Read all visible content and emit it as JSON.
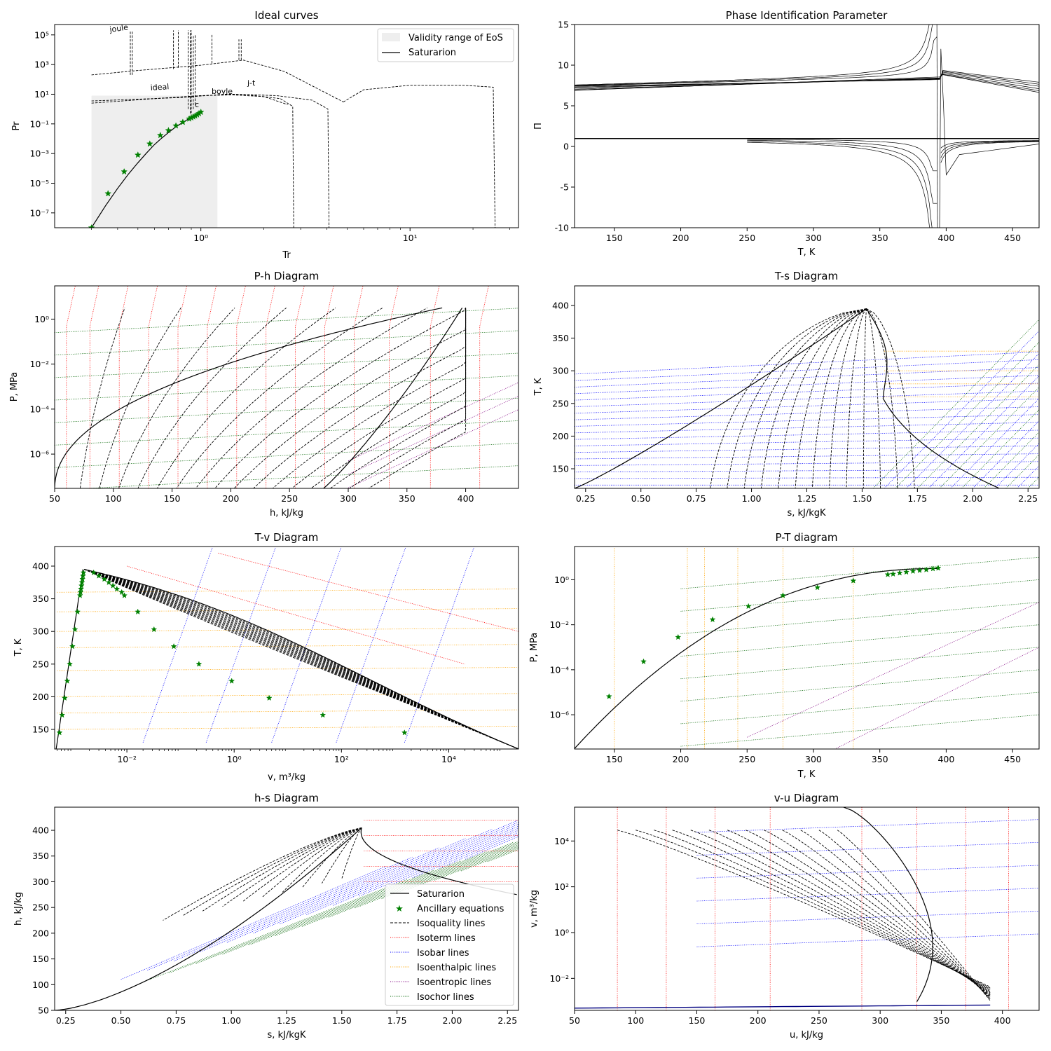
{
  "colors": {
    "saturation": "#000000",
    "ancillary": "#008000",
    "isoquality": "#000000",
    "isotherm": "#ff0000",
    "isobar": "#0000ff",
    "isoenthalpic": "#ffa500",
    "isoentropic": "#800080",
    "isochor": "#006400",
    "validity": "#eeeeee"
  },
  "chart_data": [
    {
      "id": "ideal",
      "type": "line",
      "title": "Ideal curves",
      "xlabel": "Tr",
      "ylabel": "Pr",
      "xscale": "log",
      "yscale": "log",
      "xlim": [
        0.2,
        33
      ],
      "ylim": [
        1e-08,
        500000.0
      ],
      "xticks": [
        {
          "v": 1,
          "label": "10⁰"
        },
        {
          "v": 10,
          "label": "10¹"
        }
      ],
      "yticks": [
        {
          "v": 1e-07,
          "label": "10⁻⁷"
        },
        {
          "v": 1e-05,
          "label": "10⁻⁵"
        },
        {
          "v": 0.001,
          "label": "10⁻³"
        },
        {
          "v": 0.1,
          "label": "10⁻¹"
        },
        {
          "v": 10,
          "label": "10¹"
        },
        {
          "v": 1000,
          "label": "10³"
        },
        {
          "v": 100000,
          "label": "10⁵"
        }
      ],
      "legend": {
        "position": "top-right",
        "entries": [
          "Validity range of EoS",
          "Saturarion"
        ]
      },
      "annotations": [
        "joule",
        "ideal",
        "boyle",
        "j-t",
        "c"
      ],
      "saturation": {
        "x": [
          0.3,
          0.35,
          0.4,
          0.45,
          0.5,
          0.55,
          0.6,
          0.65,
          0.7,
          0.75,
          0.8,
          0.85,
          0.9,
          0.95,
          1.0
        ],
        "y": [
          1e-08,
          3e-07,
          4.5e-06,
          4e-05,
          0.00024,
          0.0011,
          0.004,
          0.011,
          0.026,
          0.055,
          0.1,
          0.17,
          0.28,
          0.44,
          0.65
        ]
      },
      "ancillary": {
        "x": [
          0.3,
          0.36,
          0.43,
          0.5,
          0.57,
          0.64,
          0.7,
          0.76,
          0.82,
          0.88,
          0.9,
          0.92,
          0.94,
          0.96,
          0.98,
          1.0
        ],
        "y": [
          1e-08,
          2e-06,
          6e-05,
          0.0008,
          0.0045,
          0.017,
          0.036,
          0.075,
          0.13,
          0.22,
          0.26,
          0.3,
          0.35,
          0.41,
          0.5,
          0.62
        ]
      },
      "validity": {
        "tr": [
          0.3,
          1.2
        ],
        "pr": [
          1e-08,
          8
        ]
      }
    },
    {
      "id": "pip",
      "type": "line",
      "title": "Phase Identification Parameter",
      "xlabel": "T, K",
      "ylabel": "Π",
      "xscale": "linear",
      "yscale": "linear",
      "xlim": [
        120,
        470
      ],
      "ylim": [
        -10,
        15
      ],
      "xticks": [
        150,
        200,
        250,
        300,
        350,
        400,
        450
      ],
      "yticks": [
        -10,
        -5,
        0,
        5,
        10,
        15
      ]
    },
    {
      "id": "ph",
      "type": "line",
      "title": "P-h Diagram",
      "xlabel": "h, kJ/kg",
      "ylabel": "P, MPa",
      "xscale": "linear",
      "yscale": "log",
      "xlim": [
        50,
        445
      ],
      "ylim": [
        3e-08,
        30
      ],
      "xticks": [
        50,
        100,
        150,
        200,
        250,
        300,
        350,
        400
      ],
      "yticks": [
        {
          "v": 1e-06,
          "label": "10⁻⁶"
        },
        {
          "v": 0.0001,
          "label": "10⁻⁴"
        },
        {
          "v": 0.01,
          "label": "10⁻²"
        },
        {
          "v": 1,
          "label": "10⁰"
        }
      ]
    },
    {
      "id": "ts",
      "type": "line",
      "title": "T-s Diagram",
      "xlabel": "s, kJ/kgK",
      "ylabel": "T, K",
      "xscale": "linear",
      "yscale": "linear",
      "xlim": [
        0.2,
        2.3
      ],
      "ylim": [
        120,
        430
      ],
      "xticks": [
        0.25,
        0.5,
        0.75,
        1.0,
        1.25,
        1.5,
        1.75,
        2.0,
        2.25
      ],
      "xtick_labels": [
        "0.25",
        "0.50",
        "0.75",
        "1.00",
        "1.25",
        "1.50",
        "1.75",
        "2.00",
        "2.25"
      ],
      "yticks": [
        150,
        200,
        250,
        300,
        350,
        400
      ]
    },
    {
      "id": "tv",
      "type": "line",
      "title": "T-v Diagram",
      "xlabel": "v, m³/kg",
      "ylabel": "T, K",
      "xscale": "log",
      "yscale": "linear",
      "xlim": [
        0.00045,
        200000
      ],
      "ylim": [
        120,
        430
      ],
      "xticks": [
        {
          "v": 0.01,
          "label": "10⁻²"
        },
        {
          "v": 1,
          "label": "10⁰"
        },
        {
          "v": 100,
          "label": "10²"
        },
        {
          "v": 10000,
          "label": "10⁴"
        }
      ],
      "yticks": [
        150,
        200,
        250,
        300,
        350,
        400
      ],
      "ancillary_liquid_T": [
        145,
        172,
        198,
        224,
        250,
        277,
        303,
        330,
        355,
        360,
        365,
        370,
        375,
        380,
        385,
        390
      ],
      "ancillary_vapor": {
        "T": [
          145,
          172,
          198,
          224,
          250,
          277,
          303,
          330,
          355,
          360,
          365,
          370,
          375,
          380,
          385,
          390
        ],
        "v": [
          1500,
          45,
          4.5,
          0.9,
          0.22,
          0.075,
          0.032,
          0.016,
          0.009,
          0.008,
          0.0065,
          0.0055,
          0.0046,
          0.0038,
          0.003,
          0.0024
        ]
      }
    },
    {
      "id": "pt",
      "type": "line",
      "title": "P-T diagram",
      "xlabel": "T, K",
      "ylabel": "P, MPa",
      "xscale": "linear",
      "yscale": "log",
      "xlim": [
        120,
        470
      ],
      "ylim": [
        3e-08,
        30
      ],
      "xticks": [
        150,
        200,
        250,
        300,
        350,
        400,
        450
      ],
      "yticks": [
        {
          "v": 1e-06,
          "label": "10⁻⁶"
        },
        {
          "v": 0.0001,
          "label": "10⁻⁴"
        },
        {
          "v": 0.01,
          "label": "10⁻²"
        },
        {
          "v": 1,
          "label": "10⁰"
        }
      ],
      "ancillary": {
        "T": [
          146,
          172,
          198,
          224,
          251,
          277,
          303,
          330,
          356,
          360,
          365,
          370,
          375,
          380,
          385,
          390,
          394
        ],
        "P": [
          6.5e-06,
          0.00023,
          0.0028,
          0.017,
          0.066,
          0.2,
          0.45,
          0.9,
          1.7,
          1.8,
          2.0,
          2.2,
          2.4,
          2.6,
          2.8,
          3.1,
          3.3
        ]
      }
    },
    {
      "id": "hs",
      "type": "line",
      "title": "h-s Diagram",
      "xlabel": "s, kJ/kgK",
      "ylabel": "h, kJ/kg",
      "xscale": "linear",
      "yscale": "linear",
      "xlim": [
        0.2,
        2.3
      ],
      "ylim": [
        50,
        445
      ],
      "xticks": [
        0.25,
        0.5,
        0.75,
        1.0,
        1.25,
        1.5,
        1.75,
        2.0,
        2.25
      ],
      "xtick_labels": [
        "0.25",
        "0.50",
        "0.75",
        "1.00",
        "1.25",
        "1.50",
        "1.75",
        "2.00",
        "2.25"
      ],
      "yticks": [
        50,
        100,
        150,
        200,
        250,
        300,
        350,
        400
      ],
      "legend": {
        "position": "lower-right",
        "entries": [
          "Saturarion",
          "Ancillary equations",
          "Isoquality lines",
          "Isoterm lines",
          "Isobar lines",
          "Isoenthalpic lines",
          "Isoentropic lines",
          "Isochor lines"
        ]
      }
    },
    {
      "id": "vu",
      "type": "line",
      "title": "v-u Diagram",
      "xlabel": "u, kJ/kg",
      "ylabel": "v, m³/kg",
      "xscale": "linear",
      "yscale": "log",
      "xlim": [
        50,
        430
      ],
      "ylim": [
        0.0004,
        300000
      ],
      "xticks": [
        50,
        100,
        150,
        200,
        250,
        300,
        350,
        400
      ],
      "yticks": [
        {
          "v": 0.01,
          "label": "10⁻²"
        },
        {
          "v": 1,
          "label": "10⁰"
        },
        {
          "v": 100,
          "label": "10²"
        },
        {
          "v": 10000,
          "label": "10⁴"
        }
      ]
    }
  ]
}
